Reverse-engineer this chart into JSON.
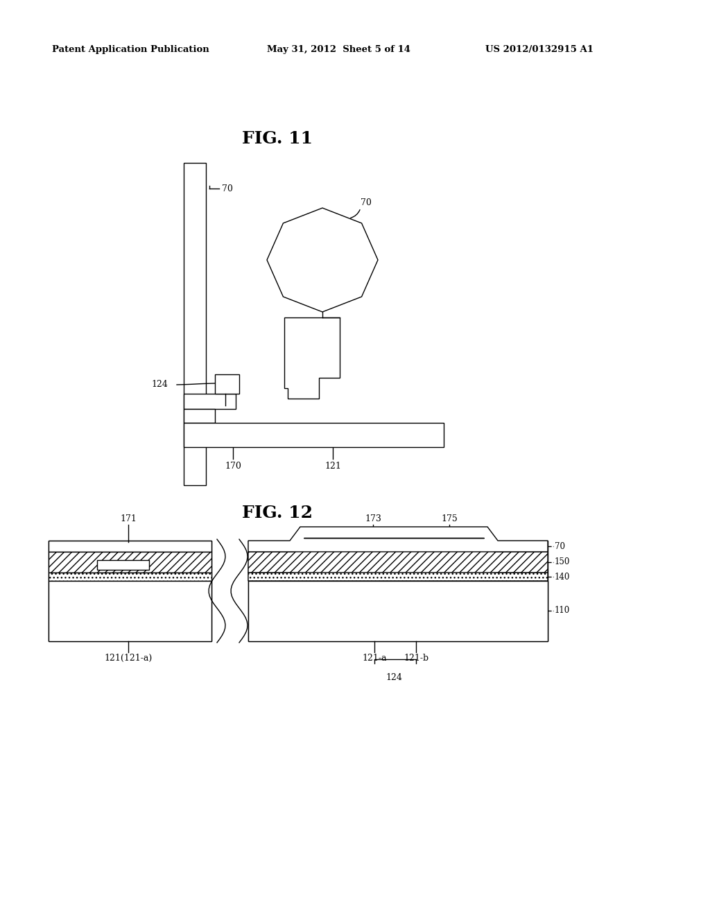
{
  "header_left": "Patent Application Publication",
  "header_center": "May 31, 2012  Sheet 5 of 14",
  "header_right": "US 2012/0132915 A1",
  "fig11_title": "FIG. 11",
  "fig12_title": "FIG. 12",
  "bg_color": "#ffffff",
  "line_color": "#000000"
}
